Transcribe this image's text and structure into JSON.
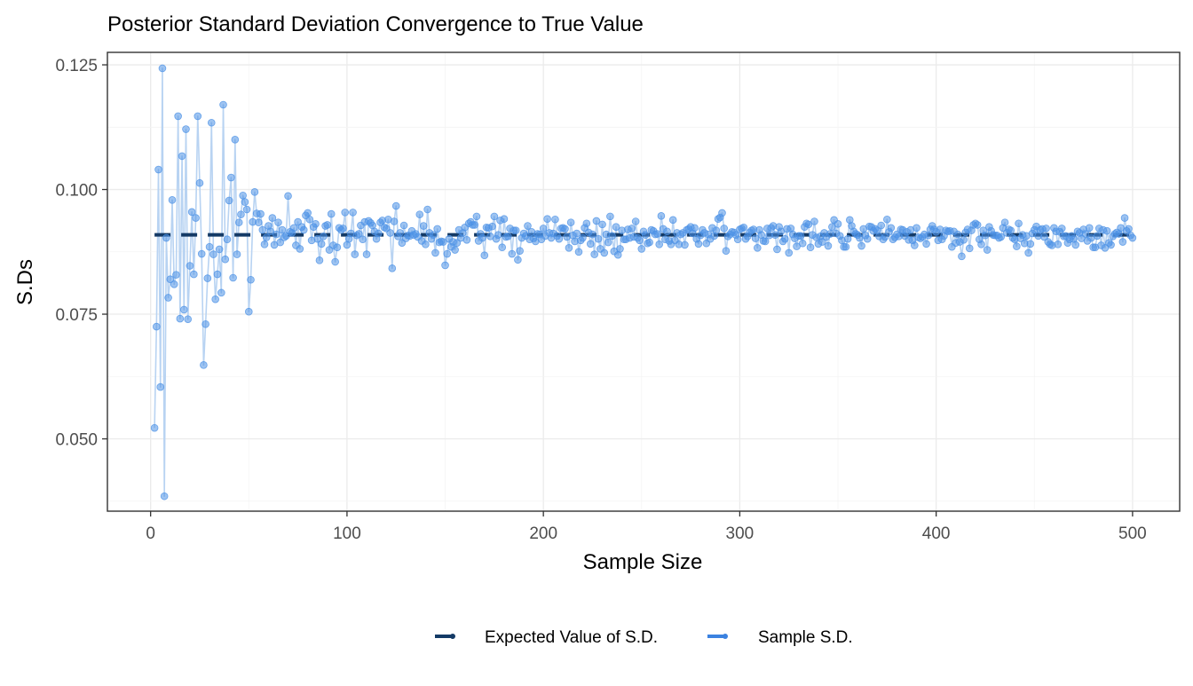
{
  "chart_data": {
    "type": "line",
    "title": "Posterior Standard Deviation Convergence to True Value",
    "xlabel": "Sample Size",
    "ylabel": "S.Ds",
    "xlim": [
      -22,
      524
    ],
    "ylim": [
      0.0355,
      0.1275
    ],
    "x_ticks": [
      0,
      100,
      200,
      300,
      400,
      500
    ],
    "x_tick_labels": [
      "0",
      "100",
      "200",
      "300",
      "400",
      "500"
    ],
    "y_ticks": [
      0.05,
      0.075,
      0.1,
      0.125
    ],
    "y_tick_labels": [
      "0.050",
      "0.075",
      "0.100",
      "0.125"
    ],
    "grid": true,
    "legend_position": "bottom",
    "colors": {
      "expected": "#143a66",
      "sample_line": "#b8d3f2",
      "sample_point": "#4d92e6",
      "legend_sample": "#3b82e0"
    },
    "series": [
      {
        "name": "Expected Value of S.D.",
        "style": "dashed",
        "x": [
          2,
          500
        ],
        "y": [
          0.0909,
          0.0909
        ]
      },
      {
        "name": "Sample S.D.",
        "style": "line-with-points",
        "x": [
          2,
          3,
          4,
          5,
          6,
          7,
          8,
          9,
          10,
          11,
          12,
          13,
          14,
          15,
          16,
          17,
          18,
          19,
          20,
          21,
          22,
          23,
          24,
          25,
          26,
          27,
          28,
          29,
          30,
          31,
          32,
          33,
          34,
          35,
          36,
          37,
          38,
          39,
          40,
          41,
          42,
          43,
          44,
          45,
          46,
          47,
          48,
          49,
          50
        ],
        "y": [
          0.0522,
          0.0725,
          0.104,
          0.0604,
          0.1243,
          0.0385,
          0.0903,
          0.0783,
          0.082,
          0.0979,
          0.081,
          0.0829,
          0.1147,
          0.0741,
          0.1067,
          0.0759,
          0.1121,
          0.074,
          0.0847,
          0.0955,
          0.083,
          0.0943,
          0.1147,
          0.1013,
          0.0871,
          0.0648,
          0.073,
          0.0822,
          0.0885,
          0.1134,
          0.087,
          0.078,
          0.083,
          0.088,
          0.0793,
          0.117,
          0.086,
          0.09,
          0.0978,
          0.1024,
          0.0823,
          0.11,
          0.087,
          0.0934,
          0.095,
          0.0988,
          0.0975,
          0.096,
          0.0755
        ],
        "note_generated": true
      }
    ],
    "sample_seed": 20240917
  }
}
